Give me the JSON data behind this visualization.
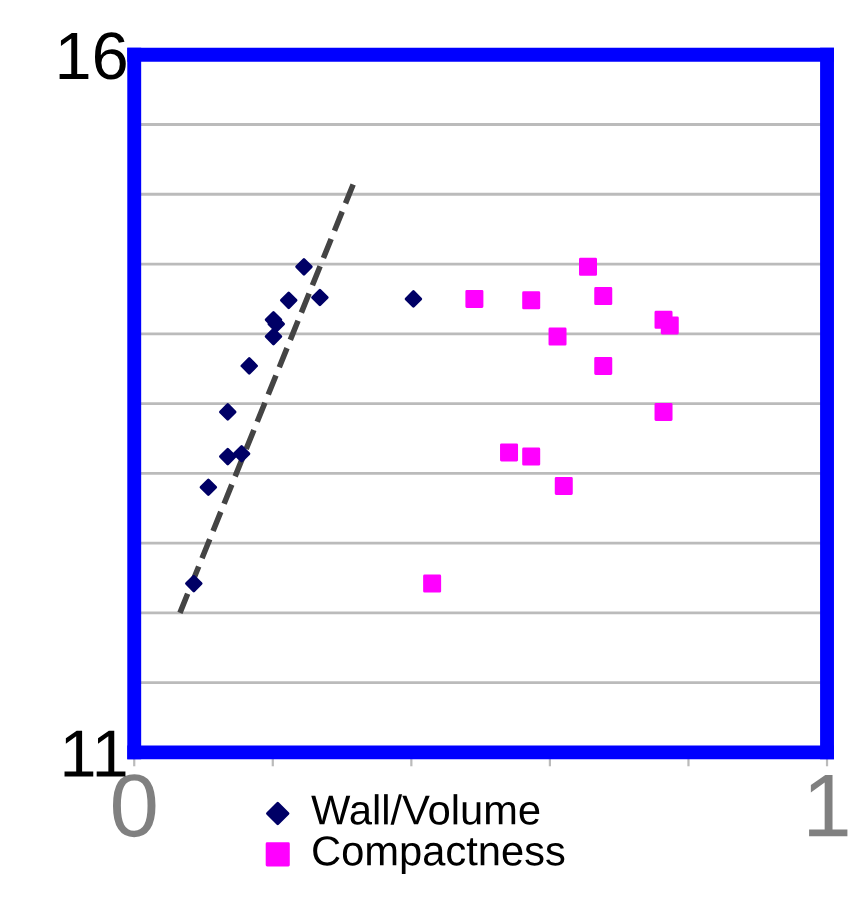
{
  "chart_data": {
    "type": "scatter",
    "xlim": [
      0,
      1
    ],
    "ylim": [
      11,
      16
    ],
    "xticks": [
      0,
      {
        "value": 0.2,
        "label": null
      },
      {
        "value": 0.4,
        "label": null
      },
      {
        "value": 0.6,
        "label": null
      },
      {
        "value": 0.8,
        "label": null
      },
      1
    ],
    "yticks": [
      11,
      {
        "value": 11.5,
        "label": null
      },
      {
        "value": 12,
        "label": null
      },
      {
        "value": 12.5,
        "label": null
      },
      {
        "value": 13,
        "label": null
      },
      {
        "value": 13.5,
        "label": null
      },
      {
        "value": 14,
        "label": null
      },
      {
        "value": 14.5,
        "label": null
      },
      {
        "value": 15,
        "label": null
      },
      {
        "value": 15.5,
        "label": null
      },
      16
    ],
    "grid": "y",
    "legend": "bottom",
    "series": [
      {
        "name": "Wall/Volume",
        "color": "#000066",
        "marker": "diamond",
        "x": [
          0.086,
          0.107,
          0.135,
          0.155,
          0.135,
          0.166,
          0.201,
          0.205,
          0.201,
          0.223,
          0.245,
          0.268,
          0.403
        ],
        "values": [
          12.21,
          12.9,
          13.12,
          13.14,
          13.44,
          13.77,
          13.98,
          14.07,
          14.1,
          14.24,
          14.48,
          14.26,
          14.25
        ]
      },
      {
        "name": "Compactness",
        "color": "#ff00ff",
        "marker": "square",
        "x": [
          0.491,
          0.573,
          0.655,
          0.677,
          0.611,
          0.677,
          0.764,
          0.773,
          0.764,
          0.541,
          0.573,
          0.62,
          0.43
        ],
        "values": [
          14.25,
          14.24,
          14.48,
          14.27,
          13.98,
          13.77,
          14.1,
          14.06,
          13.44,
          13.15,
          13.12,
          12.91,
          12.21
        ]
      },
      {
        "type": "line",
        "color": "#444444",
        "line_style": "dashed",
        "x": [
          0.066,
          0.316
        ],
        "values": [
          12.0,
          15.07
        ]
      }
    ]
  }
}
